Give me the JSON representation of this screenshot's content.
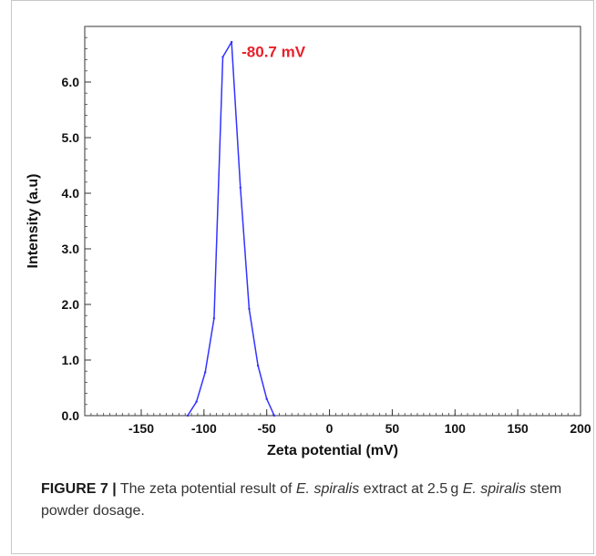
{
  "chart_data": {
    "type": "line",
    "xlabel": "Zeta potential (mV)",
    "ylabel": "Intensity (a.u)",
    "xlim": [
      -195,
      200
    ],
    "ylim": [
      0,
      7.0
    ],
    "xticks": [
      -150,
      -100,
      -50,
      0,
      50,
      100,
      150,
      200
    ],
    "yticks": [
      0.0,
      1.0,
      2.0,
      3.0,
      4.0,
      5.0,
      6.0
    ],
    "xtick_labels": [
      "-150",
      "-100",
      "-50",
      "0",
      "50",
      "100",
      "150",
      "200"
    ],
    "ytick_labels": [
      "0.0",
      "1.0",
      "2.0",
      "3.0",
      "4.0",
      "5.0",
      "6.0"
    ],
    "grid": false,
    "series": [
      {
        "color": "#3333ff",
        "x": [
          -113,
          -106,
          -99,
          -92,
          -85,
          -78,
          -71,
          -64,
          -57,
          -50,
          -44
        ],
        "y": [
          0.0,
          0.25,
          0.78,
          1.75,
          6.45,
          6.72,
          4.1,
          1.92,
          0.9,
          0.3,
          0.0
        ]
      }
    ],
    "annotations": [
      {
        "text": "-80.7 mV",
        "x": -70,
        "y": 6.45,
        "color": "#e8202a"
      }
    ]
  },
  "caption": {
    "label": "FIGURE 7 |",
    "part1": " The zeta potential result of ",
    "species1": "E. spiralis",
    "part2": " extract at 2.5 g ",
    "species2": "E. spiralis",
    "part3": " stem powder dosage."
  }
}
